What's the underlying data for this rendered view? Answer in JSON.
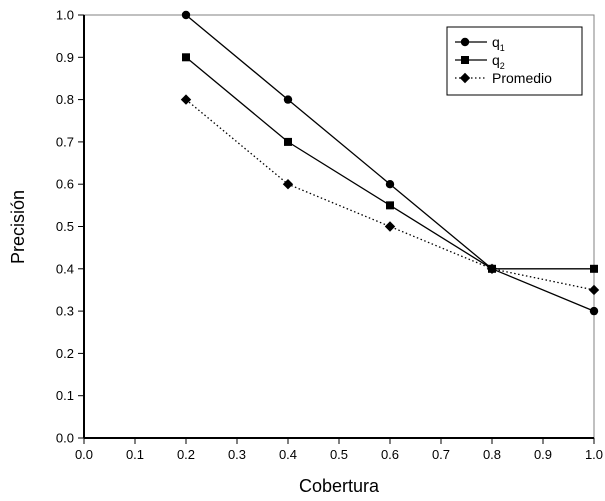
{
  "chart_data": {
    "type": "line",
    "xlabel": "Cobertura",
    "ylabel": "Precisión",
    "xlim": [
      0.0,
      1.0
    ],
    "ylim": [
      0.0,
      1.0
    ],
    "x_ticks": [
      "0.0",
      "0.1",
      "0.2",
      "0.3",
      "0.4",
      "0.5",
      "0.6",
      "0.7",
      "0.8",
      "0.9",
      "1.0"
    ],
    "y_ticks": [
      "0.0",
      "0.1",
      "0.2",
      "0.3",
      "0.4",
      "0.5",
      "0.6",
      "0.7",
      "0.8",
      "0.9",
      "1.0"
    ],
    "grid": false,
    "legend_position": "top-right",
    "x": [
      0.2,
      0.4,
      0.6,
      0.8,
      1.0
    ],
    "series": [
      {
        "name": "q1",
        "legend_main": "q",
        "legend_sub": "1",
        "marker": "circle",
        "line": "solid",
        "values": [
          1.0,
          0.8,
          0.6,
          0.4,
          0.3
        ]
      },
      {
        "name": "q2",
        "legend_main": "q",
        "legend_sub": "2",
        "marker": "square",
        "line": "solid",
        "values": [
          0.9,
          0.7,
          0.55,
          0.4,
          0.4
        ]
      },
      {
        "name": "Promedio",
        "legend_main": "Promedio",
        "legend_sub": "",
        "marker": "diamond",
        "line": "dotted",
        "values": [
          0.8,
          0.6,
          0.5,
          0.4,
          0.35
        ]
      }
    ],
    "colors": {
      "lines": "#000000",
      "axes": "#000000",
      "frame": "#808080",
      "background": "#ffffff"
    }
  }
}
